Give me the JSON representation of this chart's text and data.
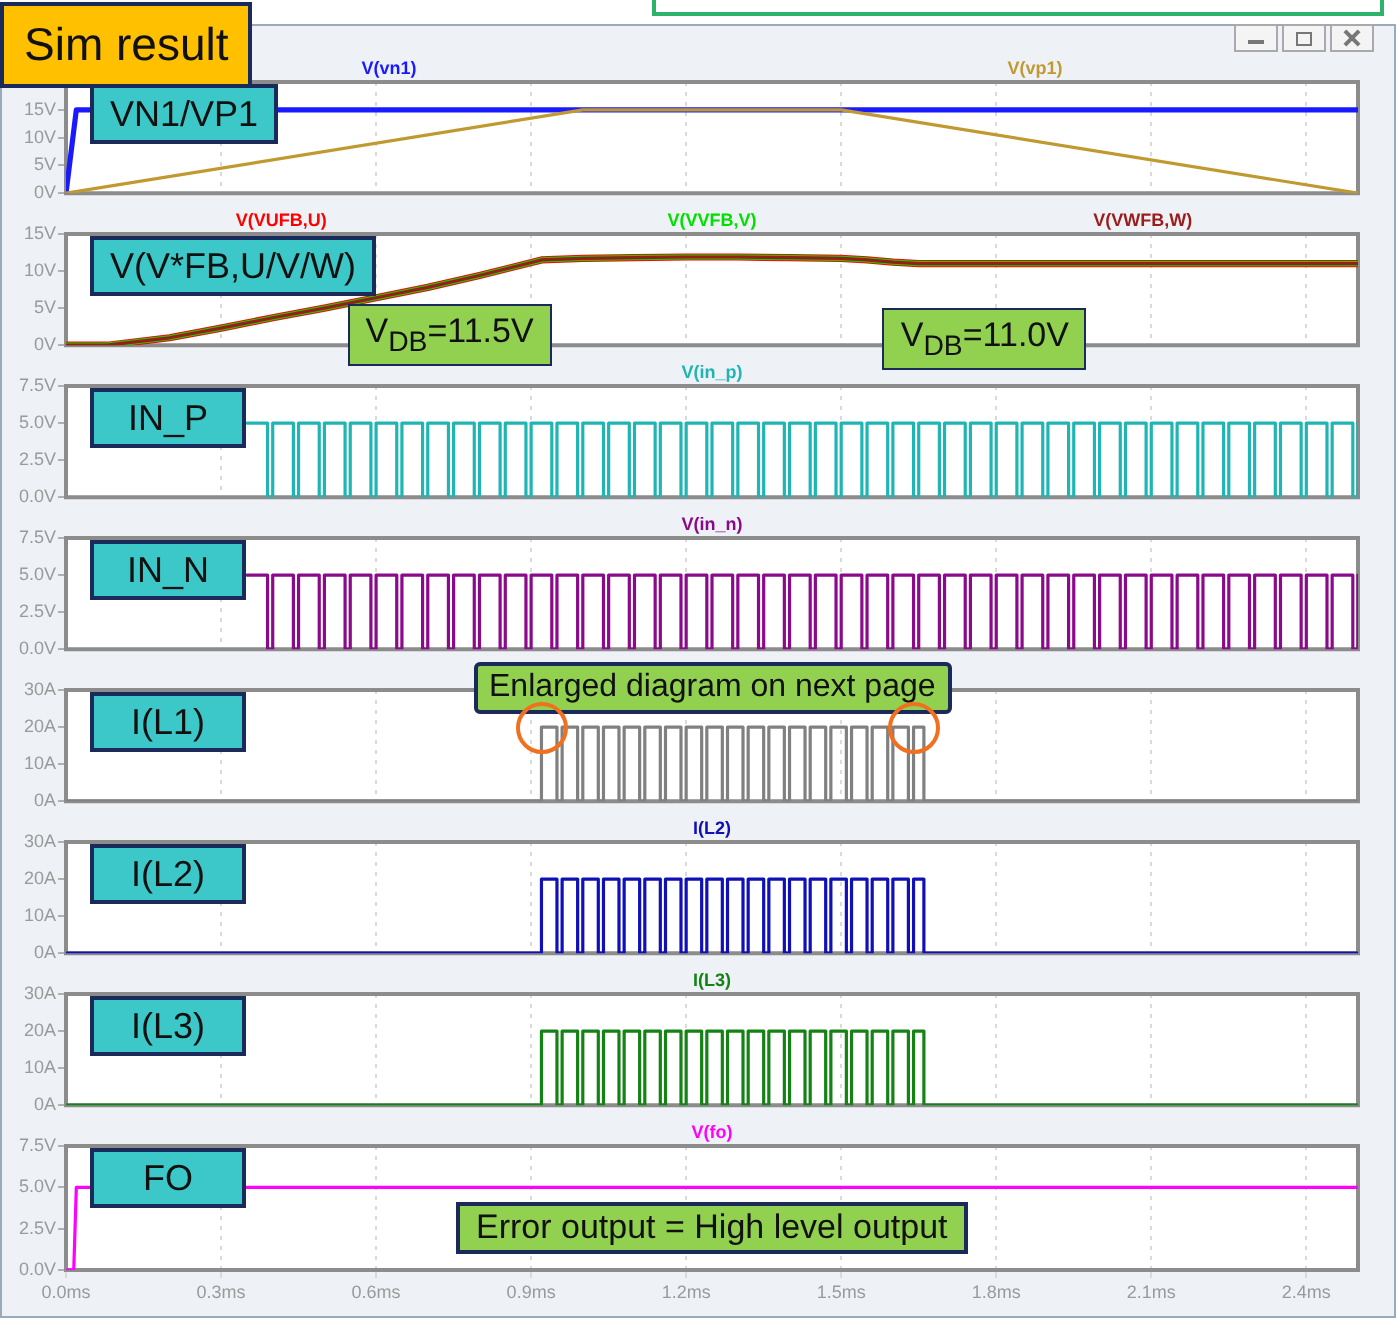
{
  "chart_data": [
    {
      "type": "line",
      "title": "VN1/VP1",
      "annotations": [
        "Sim result"
      ],
      "xlim": [
        0,
        2.5
      ],
      "xticks": [
        {
          "value": 0,
          "label": null
        },
        {
          "value": 0.3,
          "label": null
        },
        {
          "value": 0.6,
          "label": null
        },
        {
          "value": 0.9,
          "label": null
        },
        {
          "value": 1.2,
          "label": null
        },
        {
          "value": 1.5,
          "label": null
        },
        {
          "value": 1.8,
          "label": null
        },
        {
          "value": 2.1,
          "label": null
        },
        {
          "value": 2.4,
          "label": null
        }
      ],
      "ylim": [
        0,
        20
      ],
      "yticks": [
        {
          "value": 0,
          "label": "0V"
        },
        {
          "value": 5,
          "label": "5V"
        },
        {
          "value": 10,
          "label": "10V"
        },
        {
          "value": 15,
          "label": "15V"
        }
      ],
      "grid": "x",
      "tick_labels": "y",
      "series": [
        {
          "name": "V(vn1)",
          "color": "#1a1aff",
          "x": [
            0,
            0.02,
            2.5
          ],
          "values": [
            0,
            15,
            15
          ]
        },
        {
          "name": "V(vp1)",
          "color": "#c09a30",
          "x": [
            0,
            1.0,
            1.5,
            2.5
          ],
          "values": [
            0,
            15,
            15,
            0
          ]
        }
      ]
    },
    {
      "type": "line",
      "title": "V(V*FB,U/V/W)",
      "annotations": [
        {
          "text": "V$_{DB}$=11.5V",
          "x": 0.92,
          "y": 11.5
        },
        {
          "text": "V$_{DB}$=11.0V",
          "x": 1.65,
          "y": 11.0
        }
      ],
      "xlim": [
        0,
        2.5
      ],
      "xticks": [
        {
          "value": 0,
          "label": null
        },
        {
          "value": 0.3,
          "label": null
        },
        {
          "value": 0.6,
          "label": null
        },
        {
          "value": 0.9,
          "label": null
        },
        {
          "value": 1.2,
          "label": null
        },
        {
          "value": 1.5,
          "label": null
        },
        {
          "value": 1.8,
          "label": null
        },
        {
          "value": 2.1,
          "label": null
        },
        {
          "value": 2.4,
          "label": null
        }
      ],
      "ylim": [
        0,
        15
      ],
      "yticks": [
        {
          "value": 0,
          "label": "0V"
        },
        {
          "value": 5,
          "label": "5V"
        },
        {
          "value": 10,
          "label": "10V"
        },
        {
          "value": 15,
          "label": "15V"
        }
      ],
      "grid": "x",
      "tick_labels": "y",
      "series": [
        {
          "name": "V(VUFB,U)",
          "color": "#ff0000",
          "x": [
            0,
            0.08,
            0.2,
            0.3,
            0.4,
            0.5,
            0.6,
            0.7,
            0.8,
            0.92,
            1.0,
            1.1,
            1.2,
            1.3,
            1.4,
            1.5,
            1.55,
            1.6,
            1.65,
            2.5
          ],
          "values": [
            0,
            0,
            1.0,
            2.3,
            3.7,
            5.0,
            6.4,
            7.8,
            9.4,
            11.5,
            11.7,
            11.8,
            11.9,
            11.9,
            11.8,
            11.7,
            11.5,
            11.2,
            11.0,
            11.0
          ]
        },
        {
          "name": "V(VVFB,V)",
          "color": "#00e000",
          "x": [
            0,
            0.08,
            0.2,
            0.3,
            0.4,
            0.5,
            0.6,
            0.7,
            0.8,
            0.92,
            1.0,
            1.1,
            1.2,
            1.3,
            1.4,
            1.5,
            1.55,
            1.6,
            1.65,
            2.5
          ],
          "values": [
            0,
            0,
            1.0,
            2.3,
            3.7,
            5.0,
            6.4,
            7.8,
            9.4,
            11.5,
            11.7,
            11.8,
            11.9,
            11.9,
            11.8,
            11.7,
            11.5,
            11.2,
            11.0,
            11.0
          ]
        },
        {
          "name": "V(VWFB,W)",
          "color": "#9a1c1c",
          "x": [
            0,
            0.08,
            0.2,
            0.3,
            0.4,
            0.5,
            0.6,
            0.7,
            0.8,
            0.92,
            1.0,
            1.1,
            1.2,
            1.3,
            1.4,
            1.5,
            1.55,
            1.6,
            1.65,
            2.5
          ],
          "values": [
            0,
            0,
            1.0,
            2.3,
            3.7,
            5.0,
            6.4,
            7.8,
            9.4,
            11.5,
            11.7,
            11.8,
            11.9,
            11.9,
            11.8,
            11.7,
            11.5,
            11.2,
            11.0,
            11.0
          ]
        }
      ]
    },
    {
      "type": "step",
      "title": "IN_P",
      "xlim": [
        0,
        2.5
      ],
      "xticks": [
        {
          "value": 0,
          "label": null
        },
        {
          "value": 0.3,
          "label": null
        },
        {
          "value": 0.6,
          "label": null
        },
        {
          "value": 0.9,
          "label": null
        },
        {
          "value": 1.2,
          "label": null
        },
        {
          "value": 1.5,
          "label": null
        },
        {
          "value": 1.8,
          "label": null
        },
        {
          "value": 2.1,
          "label": null
        },
        {
          "value": 2.4,
          "label": null
        }
      ],
      "ylim": [
        0,
        7.5
      ],
      "yticks": [
        {
          "value": 0,
          "label": "0.0V"
        },
        {
          "value": 2.5,
          "label": "2.5V"
        },
        {
          "value": 5,
          "label": "5.0V"
        },
        {
          "value": 7.5,
          "label": "7.5V"
        }
      ],
      "grid": "x",
      "tick_labels": "y",
      "series": [
        {
          "name": "V(in_p)",
          "color": "#1fb5b5",
          "x": [
            0.35,
            0.39,
            0.4,
            0.44,
            0.45,
            0.49,
            0.5,
            0.54,
            0.55,
            0.59,
            0.6,
            0.64,
            0.65,
            0.69,
            0.7,
            0.74,
            0.75,
            0.79,
            0.8,
            0.84,
            0.85,
            0.89,
            0.9,
            0.94,
            0.95,
            0.99,
            1.0,
            1.04,
            1.05,
            1.09,
            1.1,
            1.14,
            1.15,
            1.19,
            1.2,
            1.24,
            1.25,
            1.29,
            1.3,
            1.34,
            1.35,
            1.39,
            1.4,
            1.44,
            1.45,
            1.49,
            1.5,
            1.54,
            1.55,
            1.59,
            1.6,
            1.64,
            1.65,
            1.69,
            1.7,
            1.74,
            1.75,
            1.79,
            1.8,
            1.84,
            1.85,
            1.89,
            1.9,
            1.94,
            1.95,
            1.99,
            2.0,
            2.04,
            2.05,
            2.09,
            2.1,
            2.14,
            2.15,
            2.19,
            2.2,
            2.24,
            2.25,
            2.29,
            2.3,
            2.34,
            2.35,
            2.39,
            2.4,
            2.44,
            2.45,
            2.49,
            2.5
          ],
          "values": [
            5,
            0,
            5,
            0,
            5,
            0,
            5,
            0,
            5,
            0,
            5,
            0,
            5,
            0,
            5,
            0,
            5,
            0,
            5,
            0,
            5,
            0,
            5,
            0,
            5,
            0,
            5,
            0,
            5,
            0,
            5,
            0,
            5,
            0,
            5,
            0,
            5,
            0,
            5,
            0,
            5,
            0,
            5,
            0,
            5,
            0,
            5,
            0,
            5,
            0,
            5,
            0,
            5,
            0,
            5,
            0,
            5,
            0,
            5,
            0,
            5,
            0,
            5,
            0,
            5,
            0,
            5,
            0,
            5,
            0,
            5,
            0,
            5,
            0,
            5,
            0,
            5,
            0,
            5,
            0,
            5,
            0,
            5,
            0,
            5,
            0,
            5
          ]
        }
      ]
    },
    {
      "type": "step",
      "title": "IN_N",
      "xlim": [
        0,
        2.5
      ],
      "xticks": [
        {
          "value": 0,
          "label": null
        },
        {
          "value": 0.3,
          "label": null
        },
        {
          "value": 0.6,
          "label": null
        },
        {
          "value": 0.9,
          "label": null
        },
        {
          "value": 1.2,
          "label": null
        },
        {
          "value": 1.5,
          "label": null
        },
        {
          "value": 1.8,
          "label": null
        },
        {
          "value": 2.1,
          "label": null
        },
        {
          "value": 2.4,
          "label": null
        }
      ],
      "ylim": [
        0,
        7.5
      ],
      "yticks": [
        {
          "value": 0,
          "label": "0.0V"
        },
        {
          "value": 2.5,
          "label": "2.5V"
        },
        {
          "value": 5,
          "label": "5.0V"
        },
        {
          "value": 7.5,
          "label": "7.5V"
        }
      ],
      "grid": "x",
      "tick_labels": "y",
      "series": [
        {
          "name": "V(in_n)",
          "color": "#8b0a8b",
          "x": [
            0.35,
            0.39,
            0.4,
            0.44,
            0.45,
            0.49,
            0.5,
            0.54,
            0.55,
            0.59,
            0.6,
            0.64,
            0.65,
            0.69,
            0.7,
            0.74,
            0.75,
            0.79,
            0.8,
            0.84,
            0.85,
            0.89,
            0.9,
            0.94,
            0.95,
            0.99,
            1.0,
            1.04,
            1.05,
            1.09,
            1.1,
            1.14,
            1.15,
            1.19,
            1.2,
            1.24,
            1.25,
            1.29,
            1.3,
            1.34,
            1.35,
            1.39,
            1.4,
            1.44,
            1.45,
            1.49,
            1.5,
            1.54,
            1.55,
            1.59,
            1.6,
            1.64,
            1.65,
            1.69,
            1.7,
            1.74,
            1.75,
            1.79,
            1.8,
            1.84,
            1.85,
            1.89,
            1.9,
            1.94,
            1.95,
            1.99,
            2.0,
            2.04,
            2.05,
            2.09,
            2.1,
            2.14,
            2.15,
            2.19,
            2.2,
            2.24,
            2.25,
            2.29,
            2.3,
            2.34,
            2.35,
            2.39,
            2.4,
            2.44,
            2.45,
            2.49,
            2.5
          ],
          "values": [
            5,
            0,
            5,
            0,
            5,
            0,
            5,
            0,
            5,
            0,
            5,
            0,
            5,
            0,
            5,
            0,
            5,
            0,
            5,
            0,
            5,
            0,
            5,
            0,
            5,
            0,
            5,
            0,
            5,
            0,
            5,
            0,
            5,
            0,
            5,
            0,
            5,
            0,
            5,
            0,
            5,
            0,
            5,
            0,
            5,
            0,
            5,
            0,
            5,
            0,
            5,
            0,
            5,
            0,
            5,
            0,
            5,
            0,
            5,
            0,
            5,
            0,
            5,
            0,
            5,
            0,
            5,
            0,
            5,
            0,
            5,
            0,
            5,
            0,
            5,
            0,
            5,
            0,
            5,
            0,
            5,
            0,
            5,
            0,
            5,
            0,
            5
          ]
        }
      ]
    },
    {
      "type": "step",
      "title": "I(L1)",
      "annotations": [
        "Enlarged diagram on next page"
      ],
      "xlim": [
        0,
        2.5
      ],
      "xticks": [
        {
          "value": 0,
          "label": null
        },
        {
          "value": 0.3,
          "label": null
        },
        {
          "value": 0.6,
          "label": null
        },
        {
          "value": 0.9,
          "label": null
        },
        {
          "value": 1.2,
          "label": null
        },
        {
          "value": 1.5,
          "label": null
        },
        {
          "value": 1.8,
          "label": null
        },
        {
          "value": 2.1,
          "label": null
        },
        {
          "value": 2.4,
          "label": null
        }
      ],
      "ylim": [
        0,
        30
      ],
      "yticks": [
        {
          "value": 0,
          "label": "0A"
        },
        {
          "value": 10,
          "label": "10A"
        },
        {
          "value": 20,
          "label": "20A"
        },
        {
          "value": 30,
          "label": "30A"
        }
      ],
      "grid": "x",
      "tick_labels": "y",
      "series": [
        {
          "color": "#808080",
          "x": [
            0,
            0.92,
            0.95,
            0.96,
            0.99,
            1.0,
            1.03,
            1.04,
            1.07,
            1.08,
            1.11,
            1.12,
            1.15,
            1.16,
            1.19,
            1.2,
            1.23,
            1.24,
            1.27,
            1.28,
            1.31,
            1.32,
            1.35,
            1.36,
            1.39,
            1.4,
            1.43,
            1.44,
            1.47,
            1.48,
            1.51,
            1.52,
            1.55,
            1.56,
            1.59,
            1.6,
            1.63,
            1.64,
            1.66,
            2.5
          ],
          "values": [
            0,
            20,
            0,
            20,
            0,
            20,
            0,
            20,
            0,
            20,
            0,
            20,
            0,
            20,
            0,
            20,
            0,
            20,
            0,
            20,
            0,
            20,
            0,
            20,
            0,
            20,
            0,
            20,
            0,
            20,
            0,
            20,
            0,
            20,
            0,
            20,
            0,
            20,
            0,
            0
          ]
        }
      ]
    },
    {
      "type": "step",
      "title": "I(L2)",
      "xlim": [
        0,
        2.5
      ],
      "xticks": [
        {
          "value": 0,
          "label": null
        },
        {
          "value": 0.3,
          "label": null
        },
        {
          "value": 0.6,
          "label": null
        },
        {
          "value": 0.9,
          "label": null
        },
        {
          "value": 1.2,
          "label": null
        },
        {
          "value": 1.5,
          "label": null
        },
        {
          "value": 1.8,
          "label": null
        },
        {
          "value": 2.1,
          "label": null
        },
        {
          "value": 2.4,
          "label": null
        }
      ],
      "ylim": [
        0,
        30
      ],
      "yticks": [
        {
          "value": 0,
          "label": "0A"
        },
        {
          "value": 10,
          "label": "10A"
        },
        {
          "value": 20,
          "label": "20A"
        },
        {
          "value": 30,
          "label": "30A"
        }
      ],
      "grid": "x",
      "tick_labels": "y",
      "series": [
        {
          "name": "I(L2)",
          "color": "#1010b8",
          "x": [
            0,
            0.92,
            0.95,
            0.96,
            0.99,
            1.0,
            1.03,
            1.04,
            1.07,
            1.08,
            1.11,
            1.12,
            1.15,
            1.16,
            1.19,
            1.2,
            1.23,
            1.24,
            1.27,
            1.28,
            1.31,
            1.32,
            1.35,
            1.36,
            1.39,
            1.4,
            1.43,
            1.44,
            1.47,
            1.48,
            1.51,
            1.52,
            1.55,
            1.56,
            1.59,
            1.6,
            1.63,
            1.64,
            1.66,
            2.5
          ],
          "values": [
            0,
            20,
            0,
            20,
            0,
            20,
            0,
            20,
            0,
            20,
            0,
            20,
            0,
            20,
            0,
            20,
            0,
            20,
            0,
            20,
            0,
            20,
            0,
            20,
            0,
            20,
            0,
            20,
            0,
            20,
            0,
            20,
            0,
            20,
            0,
            20,
            0,
            20,
            0,
            0
          ]
        }
      ]
    },
    {
      "type": "step",
      "title": "I(L3)",
      "xlim": [
        0,
        2.5
      ],
      "xticks": [
        {
          "value": 0,
          "label": null
        },
        {
          "value": 0.3,
          "label": null
        },
        {
          "value": 0.6,
          "label": null
        },
        {
          "value": 0.9,
          "label": null
        },
        {
          "value": 1.2,
          "label": null
        },
        {
          "value": 1.5,
          "label": null
        },
        {
          "value": 1.8,
          "label": null
        },
        {
          "value": 2.1,
          "label": null
        },
        {
          "value": 2.4,
          "label": null
        }
      ],
      "ylim": [
        0,
        30
      ],
      "yticks": [
        {
          "value": 0,
          "label": "0A"
        },
        {
          "value": 10,
          "label": "10A"
        },
        {
          "value": 20,
          "label": "20A"
        },
        {
          "value": 30,
          "label": "30A"
        }
      ],
      "grid": "x",
      "tick_labels": "y",
      "series": [
        {
          "name": "I(L3)",
          "color": "#148214",
          "x": [
            0,
            0.92,
            0.95,
            0.96,
            0.99,
            1.0,
            1.03,
            1.04,
            1.07,
            1.08,
            1.11,
            1.12,
            1.15,
            1.16,
            1.19,
            1.2,
            1.23,
            1.24,
            1.27,
            1.28,
            1.31,
            1.32,
            1.35,
            1.36,
            1.39,
            1.4,
            1.43,
            1.44,
            1.47,
            1.48,
            1.51,
            1.52,
            1.55,
            1.56,
            1.59,
            1.6,
            1.63,
            1.64,
            1.66,
            2.5
          ],
          "values": [
            0,
            20,
            0,
            20,
            0,
            20,
            0,
            20,
            0,
            20,
            0,
            20,
            0,
            20,
            0,
            20,
            0,
            20,
            0,
            20,
            0,
            20,
            0,
            20,
            0,
            20,
            0,
            20,
            0,
            20,
            0,
            20,
            0,
            20,
            0,
            20,
            0,
            20,
            0,
            0
          ]
        }
      ]
    },
    {
      "type": "line",
      "title": "FO",
      "annotations": [
        "Error output = High level output"
      ],
      "xlim": [
        0,
        2.5
      ],
      "xticks": [
        {
          "value": 0,
          "label": "0.0ms"
        },
        {
          "value": 0.3,
          "label": "0.3ms"
        },
        {
          "value": 0.6,
          "label": "0.6ms"
        },
        {
          "value": 0.9,
          "label": "0.9ms"
        },
        {
          "value": 1.2,
          "label": "1.2ms"
        },
        {
          "value": 1.5,
          "label": "1.5ms"
        },
        {
          "value": 1.8,
          "label": "1.8ms"
        },
        {
          "value": 2.1,
          "label": "2.1ms"
        },
        {
          "value": 2.4,
          "label": "2.4ms"
        }
      ],
      "ylim": [
        0,
        7.5
      ],
      "yticks": [
        {
          "value": 0,
          "label": "0.0V"
        },
        {
          "value": 2.5,
          "label": "2.5V"
        },
        {
          "value": 5,
          "label": "5.0V"
        },
        {
          "value": 7.5,
          "label": "7.5V"
        }
      ],
      "grid": "x",
      "series": [
        {
          "name": "V(fo)",
          "color": "#ff00ff",
          "x": [
            0,
            0.015,
            0.02,
            2.5
          ],
          "values": [
            0,
            0,
            5,
            5
          ]
        }
      ]
    }
  ]
}
